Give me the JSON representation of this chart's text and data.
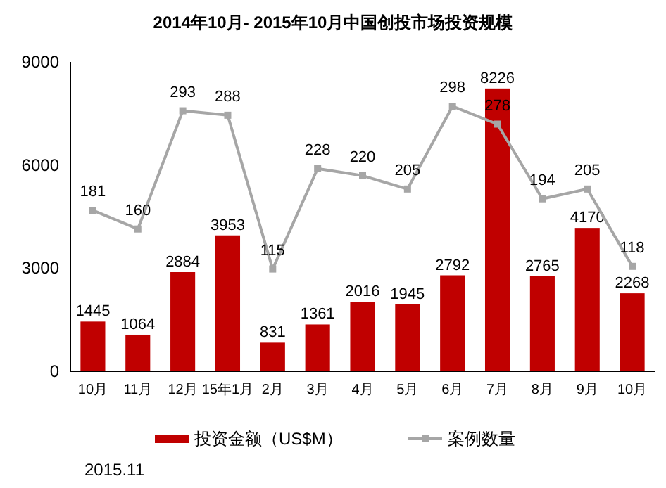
{
  "chart_data": {
    "type": "bar",
    "title": "2014年10月- 2015年10月中国创投市场投资规模",
    "categories": [
      "10月",
      "11月",
      "12月",
      "15年1月",
      "2月",
      "3月",
      "4月",
      "5月",
      "6月",
      "7月",
      "8月",
      "9月",
      "10月"
    ],
    "series": [
      {
        "name": "投资金额（US$M）",
        "color": "#c00000",
        "values": [
          1445,
          1064,
          2884,
          3953,
          831,
          1361,
          2016,
          1945,
          2792,
          8226,
          2765,
          4170,
          2268
        ]
      },
      {
        "name": "案例数量",
        "type": "line",
        "axis": "y2",
        "color": "#a6a6a6",
        "marker": "square",
        "values": [
          181,
          160,
          293,
          288,
          115,
          228,
          220,
          205,
          298,
          278,
          194,
          205,
          118
        ]
      }
    ],
    "ylim": [
      0,
      9000
    ],
    "yticks": [
      0,
      3000,
      6000,
      9000
    ],
    "y2lim": [
      0,
      348
    ],
    "data_labels": true,
    "legend": "bottom",
    "annotations": [
      "2015.11"
    ]
  }
}
